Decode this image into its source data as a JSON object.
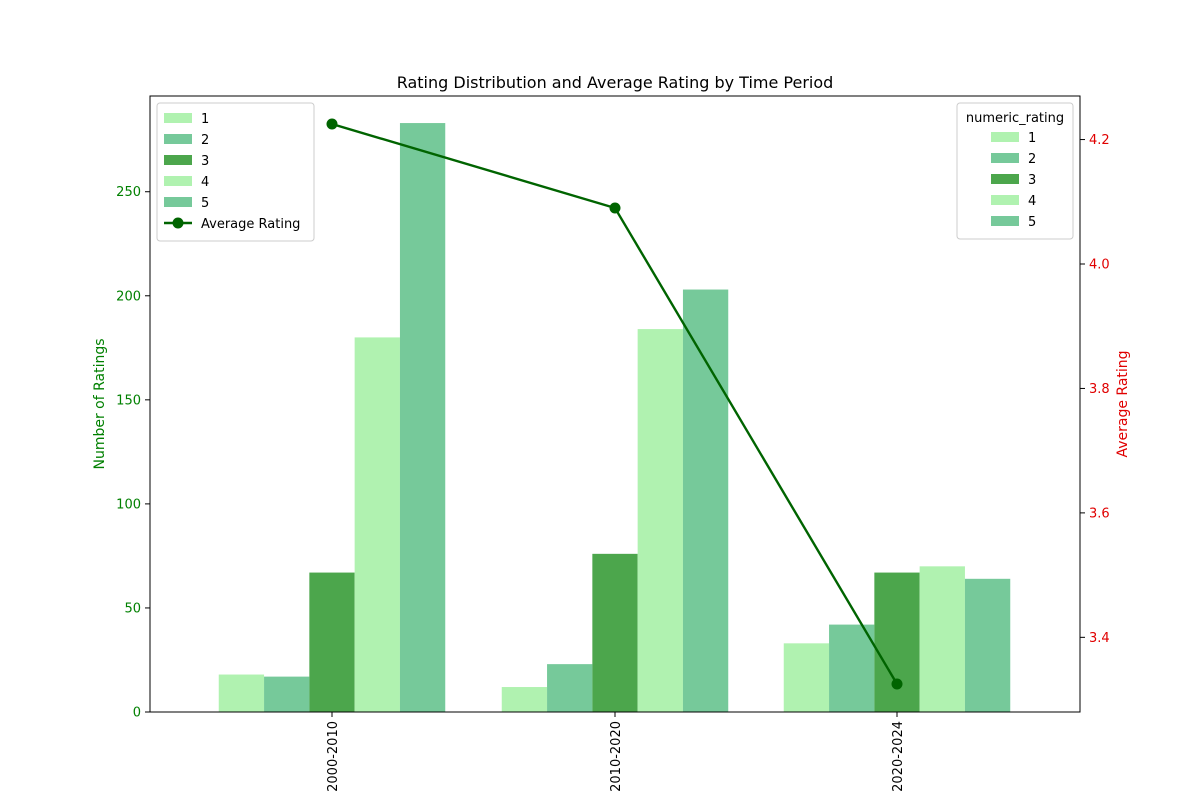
{
  "chart_data": {
    "type": "bar",
    "title": "Rating Distribution and Average Rating by Time Period",
    "xlabel": "",
    "ylabel": "Number of Ratings",
    "y2label": "Average Rating",
    "categories": [
      "2000-2010",
      "2010-2020",
      "2020-2024"
    ],
    "ylim": [
      0,
      296
    ],
    "y2lim": [
      3.28,
      4.27
    ],
    "yticks": [
      0,
      50,
      100,
      150,
      200,
      250
    ],
    "y2ticks": [
      3.4,
      3.6,
      3.8,
      4.0,
      4.2
    ],
    "series": [
      {
        "name": "1",
        "color": "#b0f2b0",
        "values": [
          18,
          12,
          33
        ]
      },
      {
        "name": "2",
        "color": "#76c99a",
        "values": [
          17,
          23,
          42
        ]
      },
      {
        "name": "3",
        "color": "#4ca64c",
        "values": [
          67,
          76,
          67
        ]
      },
      {
        "name": "4",
        "color": "#b0f2b0",
        "values": [
          180,
          184,
          70
        ]
      },
      {
        "name": "5",
        "color": "#76c99a",
        "values": [
          283,
          203,
          64
        ]
      }
    ],
    "line": {
      "name": "Average Rating",
      "color": "#006400",
      "values": [
        4.225,
        4.09,
        3.325
      ]
    },
    "legend_left": {
      "placement": "top-left",
      "title": ""
    },
    "legend_right": {
      "placement": "top-right",
      "title": "numeric_rating"
    },
    "left_axis_color": "#008000",
    "right_axis_color": "#e00000",
    "grid": false
  }
}
